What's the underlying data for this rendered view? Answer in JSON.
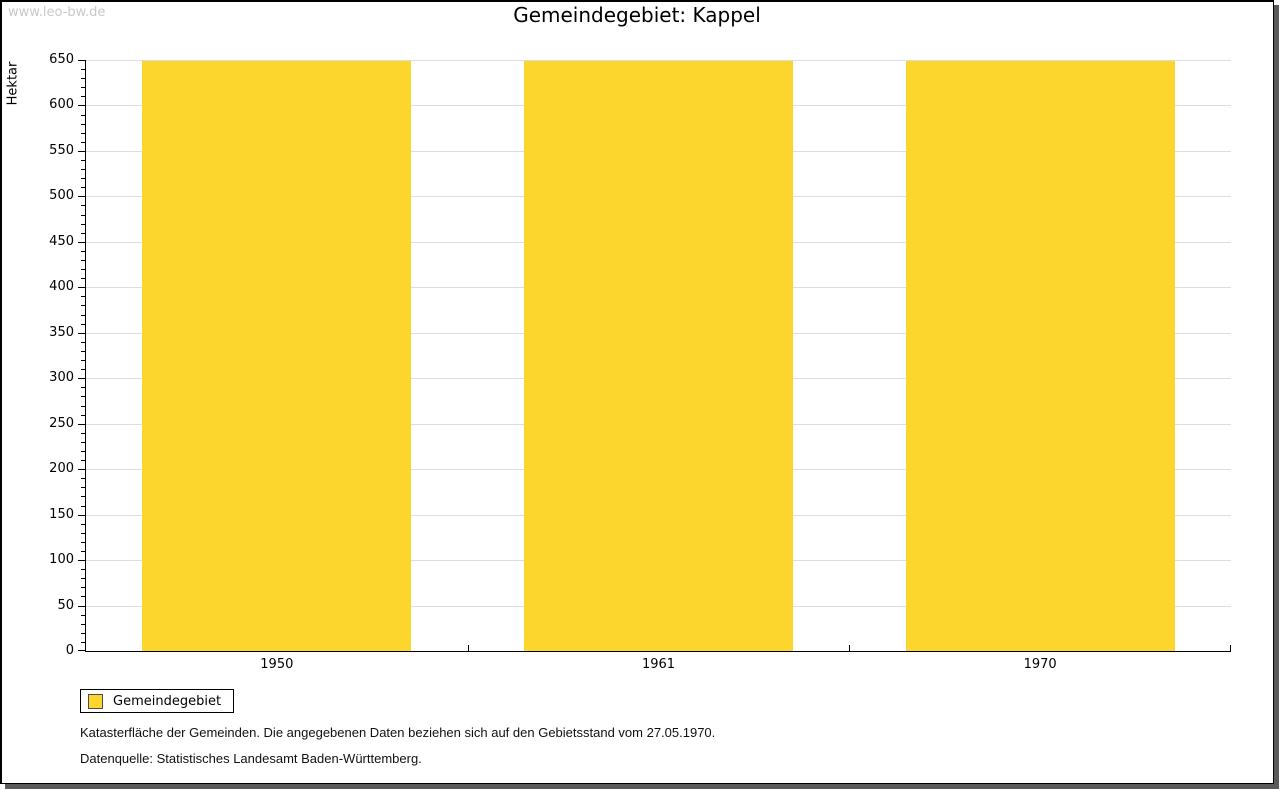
{
  "page": {
    "watermark": "www.leo-bw.de",
    "footnote_line1": "Katasterfläche der Gemeinden. Die angegebenen Daten beziehen sich auf den Gebietsstand vom 27.05.1970.",
    "footnote_line2": "Datenquelle: Statistisches Landesamt Baden-Württemberg."
  },
  "chart_data": {
    "type": "bar",
    "title": "Gemeindegebiet: Kappel",
    "xlabel": "",
    "ylabel": "Hektar",
    "categories": [
      "1950",
      "1961",
      "1970"
    ],
    "series": [
      {
        "name": "Gemeindegebiet",
        "values": [
          649,
          649,
          649
        ],
        "color": "#FCD52D"
      }
    ],
    "ylim": [
      0,
      650
    ],
    "y_major_step": 50,
    "y_minor_step": 10,
    "grid": "horizontal-major",
    "legend_position": "bottom-left"
  },
  "colors": {
    "bar": "#FCD52D",
    "grid": "#DDDDDD",
    "axis": "#000000",
    "watermark": "#C8C8C8",
    "frame_shadow": "#5A5A5A",
    "background": "#FFFFFF"
  }
}
